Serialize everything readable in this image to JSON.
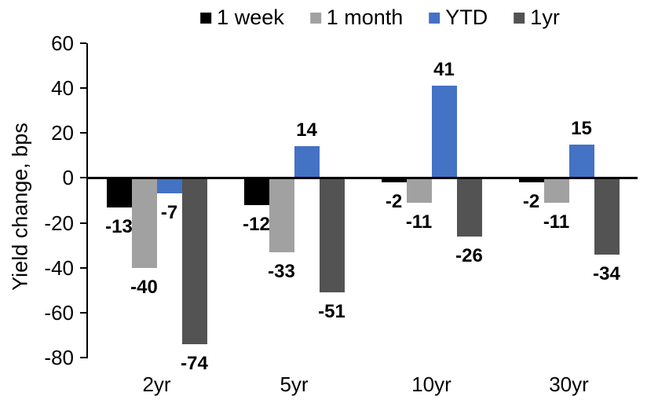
{
  "chart_data": {
    "type": "bar",
    "title": "",
    "xlabel": "",
    "ylabel": "Yield change, bps",
    "ylim": [
      -80,
      60
    ],
    "yticks": [
      60,
      40,
      20,
      0,
      -20,
      -40,
      -60,
      -80
    ],
    "grid": false,
    "legend_position": "top",
    "data_labels": "outside-end",
    "categories": [
      "2yr",
      "5yr",
      "10yr",
      "30yr"
    ],
    "series": [
      {
        "name": "1 week",
        "color": "#000000",
        "values": [
          -13,
          -12,
          -2,
          -2
        ]
      },
      {
        "name": "1 month",
        "color": "#A1A1A1",
        "values": [
          -40,
          -33,
          -11,
          -11
        ]
      },
      {
        "name": "YTD",
        "color": "#4472C4",
        "values": [
          -7,
          14,
          41,
          15
        ]
      },
      {
        "name": "1yr",
        "color": "#535353",
        "values": [
          -74,
          -51,
          -26,
          -34
        ]
      }
    ],
    "colors": {
      "axis": "#000000",
      "text": "#000000",
      "background": "#FFFFFF"
    }
  }
}
